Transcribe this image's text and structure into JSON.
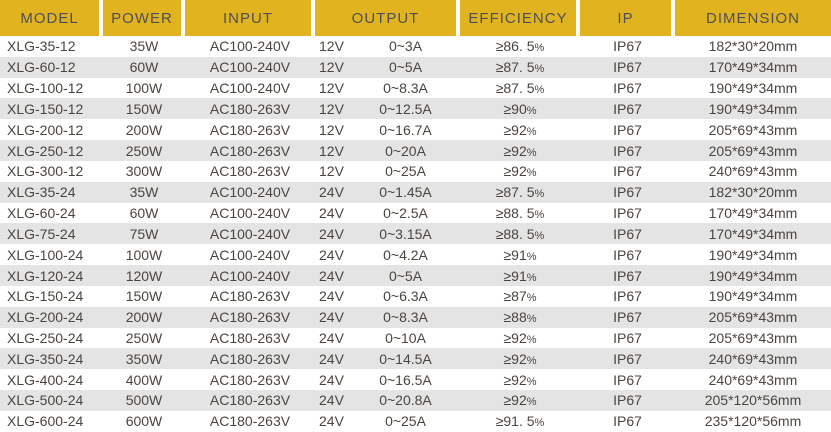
{
  "colors": {
    "header_bg": "#e1b41f",
    "header_text": "#4e4e5a",
    "row_text": "#4b453f",
    "stripe_bg": "#e4e4e4",
    "separator": "#ffffff"
  },
  "chart_data": {
    "type": "table",
    "title": "",
    "columns": [
      "MODEL",
      "POWER",
      "INPUT",
      "OUTPUT",
      "EFFICIENCY",
      "IP",
      "DIMENSION"
    ],
    "output_subcolumns": [
      "voltage",
      "current"
    ],
    "rows": [
      {
        "model": "XLG-35-12",
        "power": "35W",
        "input": "AC100-240V",
        "output_voltage": "12V",
        "output_current": "0~3A",
        "efficiency": "≥86. 5%",
        "ip": "IP67",
        "dimension": "182*30*20mm"
      },
      {
        "model": "XLG-60-12",
        "power": "60W",
        "input": "AC100-240V",
        "output_voltage": "12V",
        "output_current": "0~5A",
        "efficiency": "≥87. 5%",
        "ip": "IP67",
        "dimension": "170*49*34mm"
      },
      {
        "model": "XLG-100-12",
        "power": "100W",
        "input": "AC100-240V",
        "output_voltage": "12V",
        "output_current": "0~8.3A",
        "efficiency": "≥87. 5%",
        "ip": "IP67",
        "dimension": "190*49*34mm"
      },
      {
        "model": "XLG-150-12",
        "power": "150W",
        "input": "AC180-263V",
        "output_voltage": "12V",
        "output_current": "0~12.5A",
        "efficiency": "≥90%",
        "ip": "IP67",
        "dimension": "190*49*34mm"
      },
      {
        "model": "XLG-200-12",
        "power": "200W",
        "input": "AC180-263V",
        "output_voltage": "12V",
        "output_current": "0~16.7A",
        "efficiency": "≥92%",
        "ip": "IP67",
        "dimension": "205*69*43mm"
      },
      {
        "model": "XLG-250-12",
        "power": "250W",
        "input": "AC180-263V",
        "output_voltage": "12V",
        "output_current": "0~20A",
        "efficiency": "≥92%",
        "ip": "IP67",
        "dimension": "205*69*43mm"
      },
      {
        "model": "XLG-300-12",
        "power": "300W",
        "input": "AC180-263V",
        "output_voltage": "12V",
        "output_current": "0~25A",
        "efficiency": "≥92%",
        "ip": "IP67",
        "dimension": "240*69*43mm"
      },
      {
        "model": "XLG-35-24",
        "power": "35W",
        "input": "AC100-240V",
        "output_voltage": "24V",
        "output_current": "0~1.45A",
        "efficiency": "≥87. 5%",
        "ip": "IP67",
        "dimension": "182*30*20mm"
      },
      {
        "model": "XLG-60-24",
        "power": "60W",
        "input": "AC100-240V",
        "output_voltage": "24V",
        "output_current": "0~2.5A",
        "efficiency": "≥88. 5%",
        "ip": "IP67",
        "dimension": "170*49*34mm"
      },
      {
        "model": "XLG-75-24",
        "power": "75W",
        "input": "AC100-240V",
        "output_voltage": "24V",
        "output_current": "0~3.15A",
        "efficiency": "≥88. 5%",
        "ip": "IP67",
        "dimension": "170*49*34mm"
      },
      {
        "model": "XLG-100-24",
        "power": "100W",
        "input": "AC100-240V",
        "output_voltage": "24V",
        "output_current": "0~4.2A",
        "efficiency": "≥91%",
        "ip": "IP67",
        "dimension": "190*49*34mm"
      },
      {
        "model": "XLG-120-24",
        "power": "120W",
        "input": "AC100-240V",
        "output_voltage": "24V",
        "output_current": "0~5A",
        "efficiency": "≥91%",
        "ip": "IP67",
        "dimension": "190*49*34mm"
      },
      {
        "model": "XLG-150-24",
        "power": "150W",
        "input": "AC180-263V",
        "output_voltage": "24V",
        "output_current": "0~6.3A",
        "efficiency": "≥87%",
        "ip": "IP67",
        "dimension": "190*49*34mm"
      },
      {
        "model": "XLG-200-24",
        "power": "200W",
        "input": "AC180-263V",
        "output_voltage": "24V",
        "output_current": "0~8.3A",
        "efficiency": "≥88%",
        "ip": "IP67",
        "dimension": "205*69*43mm"
      },
      {
        "model": "XLG-250-24",
        "power": "250W",
        "input": "AC180-263V",
        "output_voltage": "24V",
        "output_current": "0~10A",
        "efficiency": "≥92%",
        "ip": "IP67",
        "dimension": "205*69*43mm"
      },
      {
        "model": "XLG-350-24",
        "power": "350W",
        "input": "AC180-263V",
        "output_voltage": "24V",
        "output_current": "0~14.5A",
        "efficiency": "≥92%",
        "ip": "IP67",
        "dimension": "240*69*43mm"
      },
      {
        "model": "XLG-400-24",
        "power": "400W",
        "input": "AC180-263V",
        "output_voltage": "24V",
        "output_current": "0~16.5A",
        "efficiency": "≥92%",
        "ip": "IP67",
        "dimension": "240*69*43mm"
      },
      {
        "model": "XLG-500-24",
        "power": "500W",
        "input": "AC180-263V",
        "output_voltage": "24V",
        "output_current": "0~20.8A",
        "efficiency": "≥92%",
        "ip": "IP67",
        "dimension": "205*120*56mm"
      },
      {
        "model": "XLG-600-24",
        "power": "600W",
        "input": "AC180-263V",
        "output_voltage": "24V",
        "output_current": "0~25A",
        "efficiency": "≥91. 5%",
        "ip": "IP67",
        "dimension": "235*120*56mm"
      }
    ]
  }
}
